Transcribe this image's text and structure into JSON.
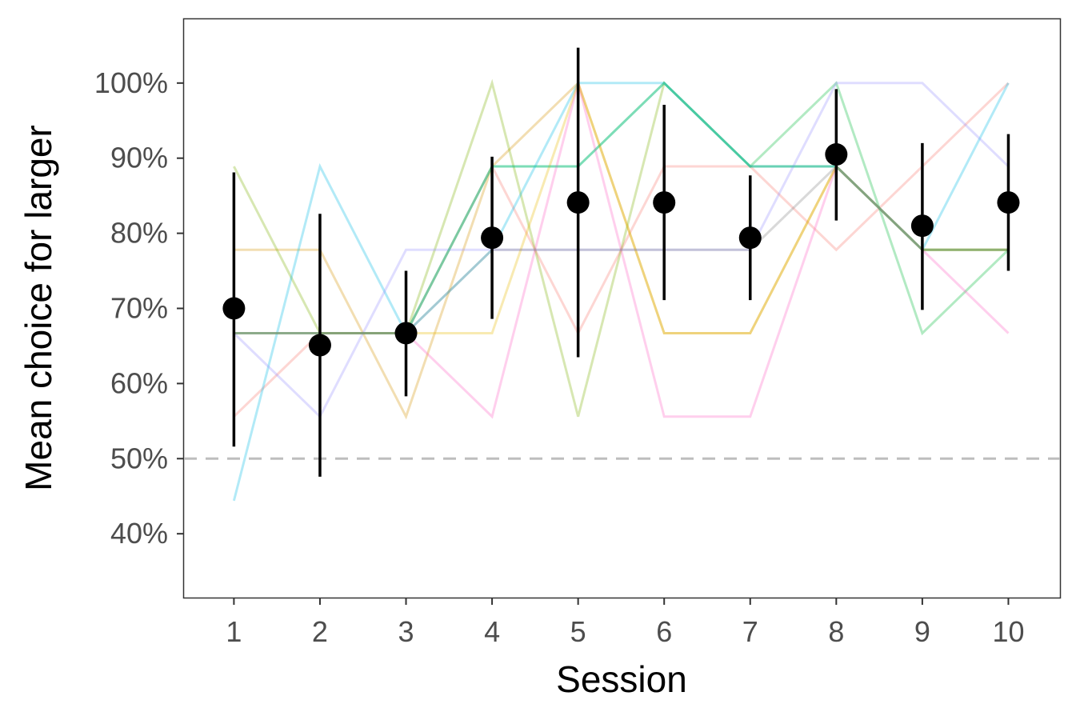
{
  "chart_data": {
    "type": "line",
    "xlabel": "Session",
    "ylabel": "Mean choice for larger",
    "x": [
      1,
      2,
      3,
      4,
      5,
      6,
      7,
      8,
      9,
      10
    ],
    "x_tick_labels": [
      "1",
      "2",
      "3",
      "4",
      "5",
      "6",
      "7",
      "8",
      "9",
      "10"
    ],
    "xlim": [
      0.42,
      10.6
    ],
    "ylim": [
      0.315,
      1.085
    ],
    "y_ticks": [
      0.4,
      0.5,
      0.6,
      0.7,
      0.8,
      0.9,
      1.0
    ],
    "y_tick_labels": [
      "40%",
      "50%",
      "60%",
      "70%",
      "80%",
      "90%",
      "100%"
    ],
    "reference_line": {
      "y": 0.5,
      "style": "dashed",
      "color": "#bebebe"
    },
    "grid": false,
    "legend": "none",
    "mean": {
      "values": [
        0.7,
        0.651,
        0.667,
        0.794,
        0.841,
        0.841,
        0.794,
        0.905,
        0.81,
        0.841
      ],
      "error_low": [
        0.516,
        0.476,
        0.583,
        0.686,
        0.635,
        0.711,
        0.711,
        0.817,
        0.698,
        0.75
      ],
      "error_high": [
        0.881,
        0.826,
        0.75,
        0.902,
        1.047,
        0.971,
        0.877,
        0.992,
        0.92,
        0.932
      ],
      "color": "#000000"
    },
    "series": [
      {
        "values": [
          0.556,
          0.667,
          0.667,
          0.889,
          0.667,
          0.889,
          0.889,
          0.778,
          0.889,
          1.0
        ],
        "color": "#F8766D"
      },
      {
        "values": [
          0.778,
          0.778,
          0.556,
          0.889,
          1.0,
          0.667,
          0.667,
          0.889,
          0.778,
          0.778
        ],
        "color": "#D39200"
      },
      {
        "values": [
          0.889,
          0.667,
          0.667,
          1.0,
          0.556,
          1.0,
          0.889,
          0.889,
          0.778,
          0.778
        ],
        "color": "#7CAE00"
      },
      {
        "values": [
          0.667,
          0.667,
          0.667,
          0.889,
          0.889,
          1.0,
          0.889,
          1.0,
          0.667,
          0.778
        ],
        "color": "#00BA38"
      },
      {
        "values": [
          0.444,
          0.889,
          0.667,
          0.778,
          1.0,
          1.0,
          0.889,
          0.889,
          0.778,
          1.0
        ],
        "color": "#00B9E3"
      },
      {
        "values": [
          0.667,
          0.556,
          0.778,
          0.778,
          0.778,
          0.778,
          0.778,
          1.0,
          1.0,
          0.889
        ],
        "color": "#9590FF"
      },
      {
        "values": [
          0.667,
          0.667,
          0.667,
          0.556,
          1.0,
          0.556,
          0.556,
          0.889,
          0.778,
          0.667
        ],
        "color": "#FF61C3"
      },
      {
        "values": [
          0.667,
          0.667,
          0.667,
          0.667,
          1.0,
          0.667,
          0.667,
          0.889,
          0.778,
          0.778
        ],
        "color": "#E7B800"
      },
      {
        "values": [
          0.667,
          0.667,
          0.667,
          0.889,
          0.889,
          1.0,
          0.889,
          0.889,
          0.778,
          0.778
        ],
        "color": "#00C19A"
      },
      {
        "values": [
          0.667,
          0.667,
          0.667,
          0.778,
          0.778,
          0.778,
          0.778,
          0.889,
          0.778,
          0.778
        ],
        "color": "#808080"
      }
    ]
  }
}
